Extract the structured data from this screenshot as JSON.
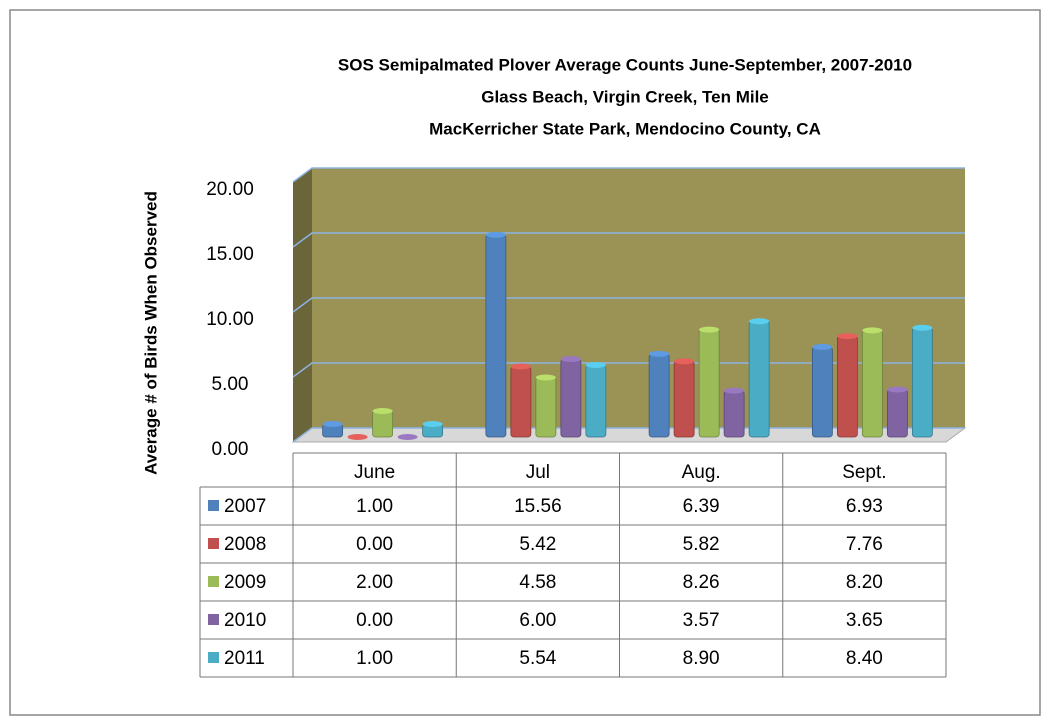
{
  "chart_data": {
    "type": "bar3d",
    "title": "SOS Semipalmated Plover Average Counts June-September, 2007-2010",
    "subtitle": [
      "Glass Beach, Virgin Creek, Ten Mile",
      "MacKerricher State Park, Mendocino County, CA"
    ],
    "y_label": "Average # of Birds When Observed",
    "categories": [
      "June",
      "Jul",
      "Aug.",
      "Sept."
    ],
    "ylim": [
      0,
      20
    ],
    "yticks": [
      {
        "value": 0,
        "label": "0.00"
      },
      {
        "value": 5,
        "label": "5.00"
      },
      {
        "value": 10,
        "label": "10.00"
      },
      {
        "value": 15,
        "label": "15.00"
      },
      {
        "value": 20,
        "label": "20.00"
      }
    ],
    "grid": true,
    "series": [
      {
        "name": "2007",
        "color": "#4f81bd",
        "values": [
          1,
          15.56,
          6.39,
          6.93
        ],
        "value_labels": [
          "1.00",
          "15.56",
          "6.39",
          "6.93"
        ]
      },
      {
        "name": "2008",
        "color": "#c0504d",
        "values": [
          0,
          5.42,
          5.82,
          7.76
        ],
        "value_labels": [
          "0.00",
          "5.42",
          "5.82",
          "7.76"
        ]
      },
      {
        "name": "2009",
        "color": "#9bbb59",
        "values": [
          2,
          4.58,
          8.26,
          8.2
        ],
        "value_labels": [
          "2.00",
          "4.58",
          "8.26",
          "8.20"
        ]
      },
      {
        "name": "2010",
        "color": "#8064a2",
        "values": [
          0,
          6,
          3.57,
          3.65
        ],
        "value_labels": [
          "0.00",
          "6.00",
          "3.57",
          "3.65"
        ]
      },
      {
        "name": "2011",
        "color": "#4bacc6",
        "values": [
          1,
          5.54,
          8.9,
          8.4
        ],
        "value_labels": [
          "1.00",
          "5.54",
          "8.90",
          "8.40"
        ]
      }
    ]
  }
}
